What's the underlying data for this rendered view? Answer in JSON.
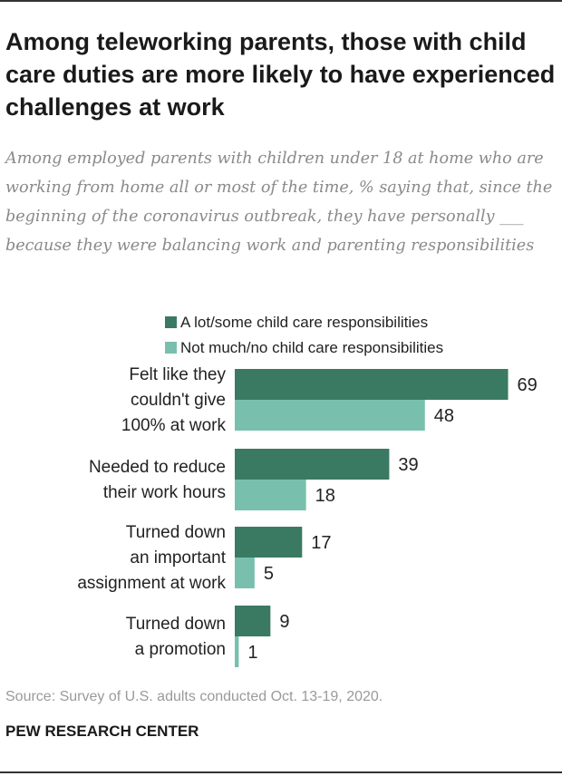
{
  "header": {
    "title": "Among teleworking parents, those with child care duties are more likely to have experienced challenges at work",
    "subtitle": "Among employed parents with children under 18 at home who are working from home all or most of the time, % saying that, since the beginning of the coronavirus outbreak, they have personally ___ because they were balancing work and parenting responsibilities"
  },
  "colors": {
    "series_a": "#3a7a63",
    "series_b": "#78c0ad"
  },
  "chart_data": {
    "type": "bar",
    "orientation": "horizontal",
    "categories": [
      [
        "Felt like they",
        "couldn't give",
        "100% at work"
      ],
      [
        "Needed to reduce",
        "their work hours"
      ],
      [
        "Turned down",
        "an important",
        "assignment at work"
      ],
      [
        "Turned down",
        "a promotion"
      ]
    ],
    "series": [
      {
        "name": "A lot/some child care responsibilities",
        "values": [
          69,
          39,
          17,
          9
        ]
      },
      {
        "name": "Not much/no child care responsibilities",
        "values": [
          48,
          18,
          5,
          1
        ]
      }
    ],
    "xlim": [
      0,
      100
    ],
    "legend_position": "top",
    "grid": false
  },
  "footer": {
    "source": "Source: Survey of U.S. adults conducted Oct. 13-19, 2020.",
    "brand": "PEW RESEARCH CENTER"
  }
}
